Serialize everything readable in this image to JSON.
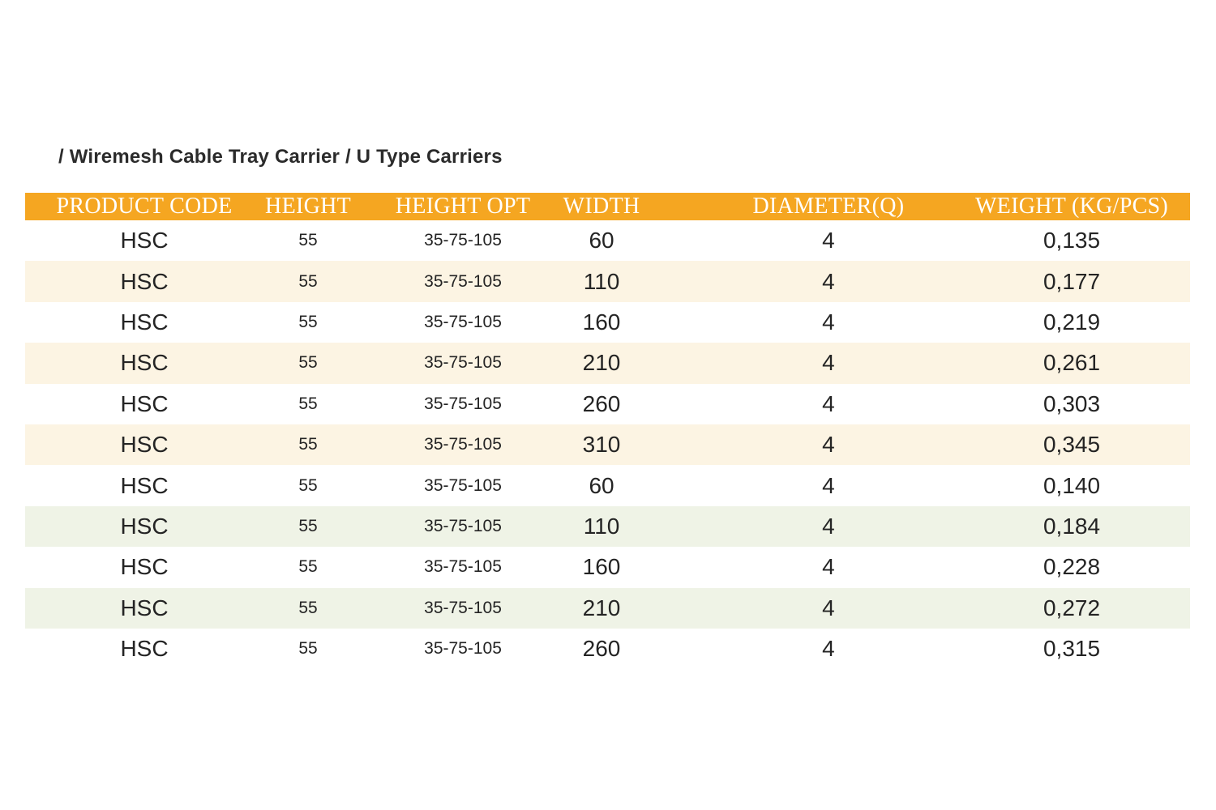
{
  "breadcrumb": {
    "text": "/ Wiremesh Cable Tray Carrier / U Type Carriers"
  },
  "table": {
    "columns": [
      "PRODUCT CODE",
      "HEIGHT",
      "HEIGHT OPT",
      "WIDTH",
      "DIAMETER(Q)",
      "WEIGHT (KG/PCS)"
    ],
    "column_keys": [
      "product-code",
      "height",
      "height-opt",
      "width",
      "diameter",
      "weight"
    ],
    "rows": [
      [
        "HSC",
        "55",
        "35-75-105",
        "60",
        "4",
        "0,135"
      ],
      [
        "HSC",
        "55",
        "35-75-105",
        "110",
        "4",
        "0,177"
      ],
      [
        "HSC",
        "55",
        "35-75-105",
        "160",
        "4",
        "0,219"
      ],
      [
        "HSC",
        "55",
        "35-75-105",
        "210",
        "4",
        "0,261"
      ],
      [
        "HSC",
        "55",
        "35-75-105",
        "260",
        "4",
        "0,303"
      ],
      [
        "HSC",
        "55",
        "35-75-105",
        "310",
        "4",
        "0,345"
      ],
      [
        "HSC",
        "55",
        "35-75-105",
        "60",
        "4",
        "0,140"
      ],
      [
        "HSC",
        "55",
        "35-75-105",
        "110",
        "4",
        "0,184"
      ],
      [
        "HSC",
        "55",
        "35-75-105",
        "160",
        "4",
        "0,228"
      ],
      [
        "HSC",
        "55",
        "35-75-105",
        "210",
        "4",
        "0,272"
      ],
      [
        "HSC",
        "55",
        "35-75-105",
        "260",
        "4",
        "0,315"
      ]
    ],
    "row_tints": [
      "white",
      "cream",
      "white",
      "cream",
      "white",
      "cream",
      "white",
      "green",
      "white",
      "green",
      "white"
    ]
  },
  "colors": {
    "header_bg": "#F5A621",
    "header_text": "#FFFFFF",
    "row_cream": "#FCF4E3",
    "row_green": "#EFF3E6",
    "body_text": "#242424"
  }
}
